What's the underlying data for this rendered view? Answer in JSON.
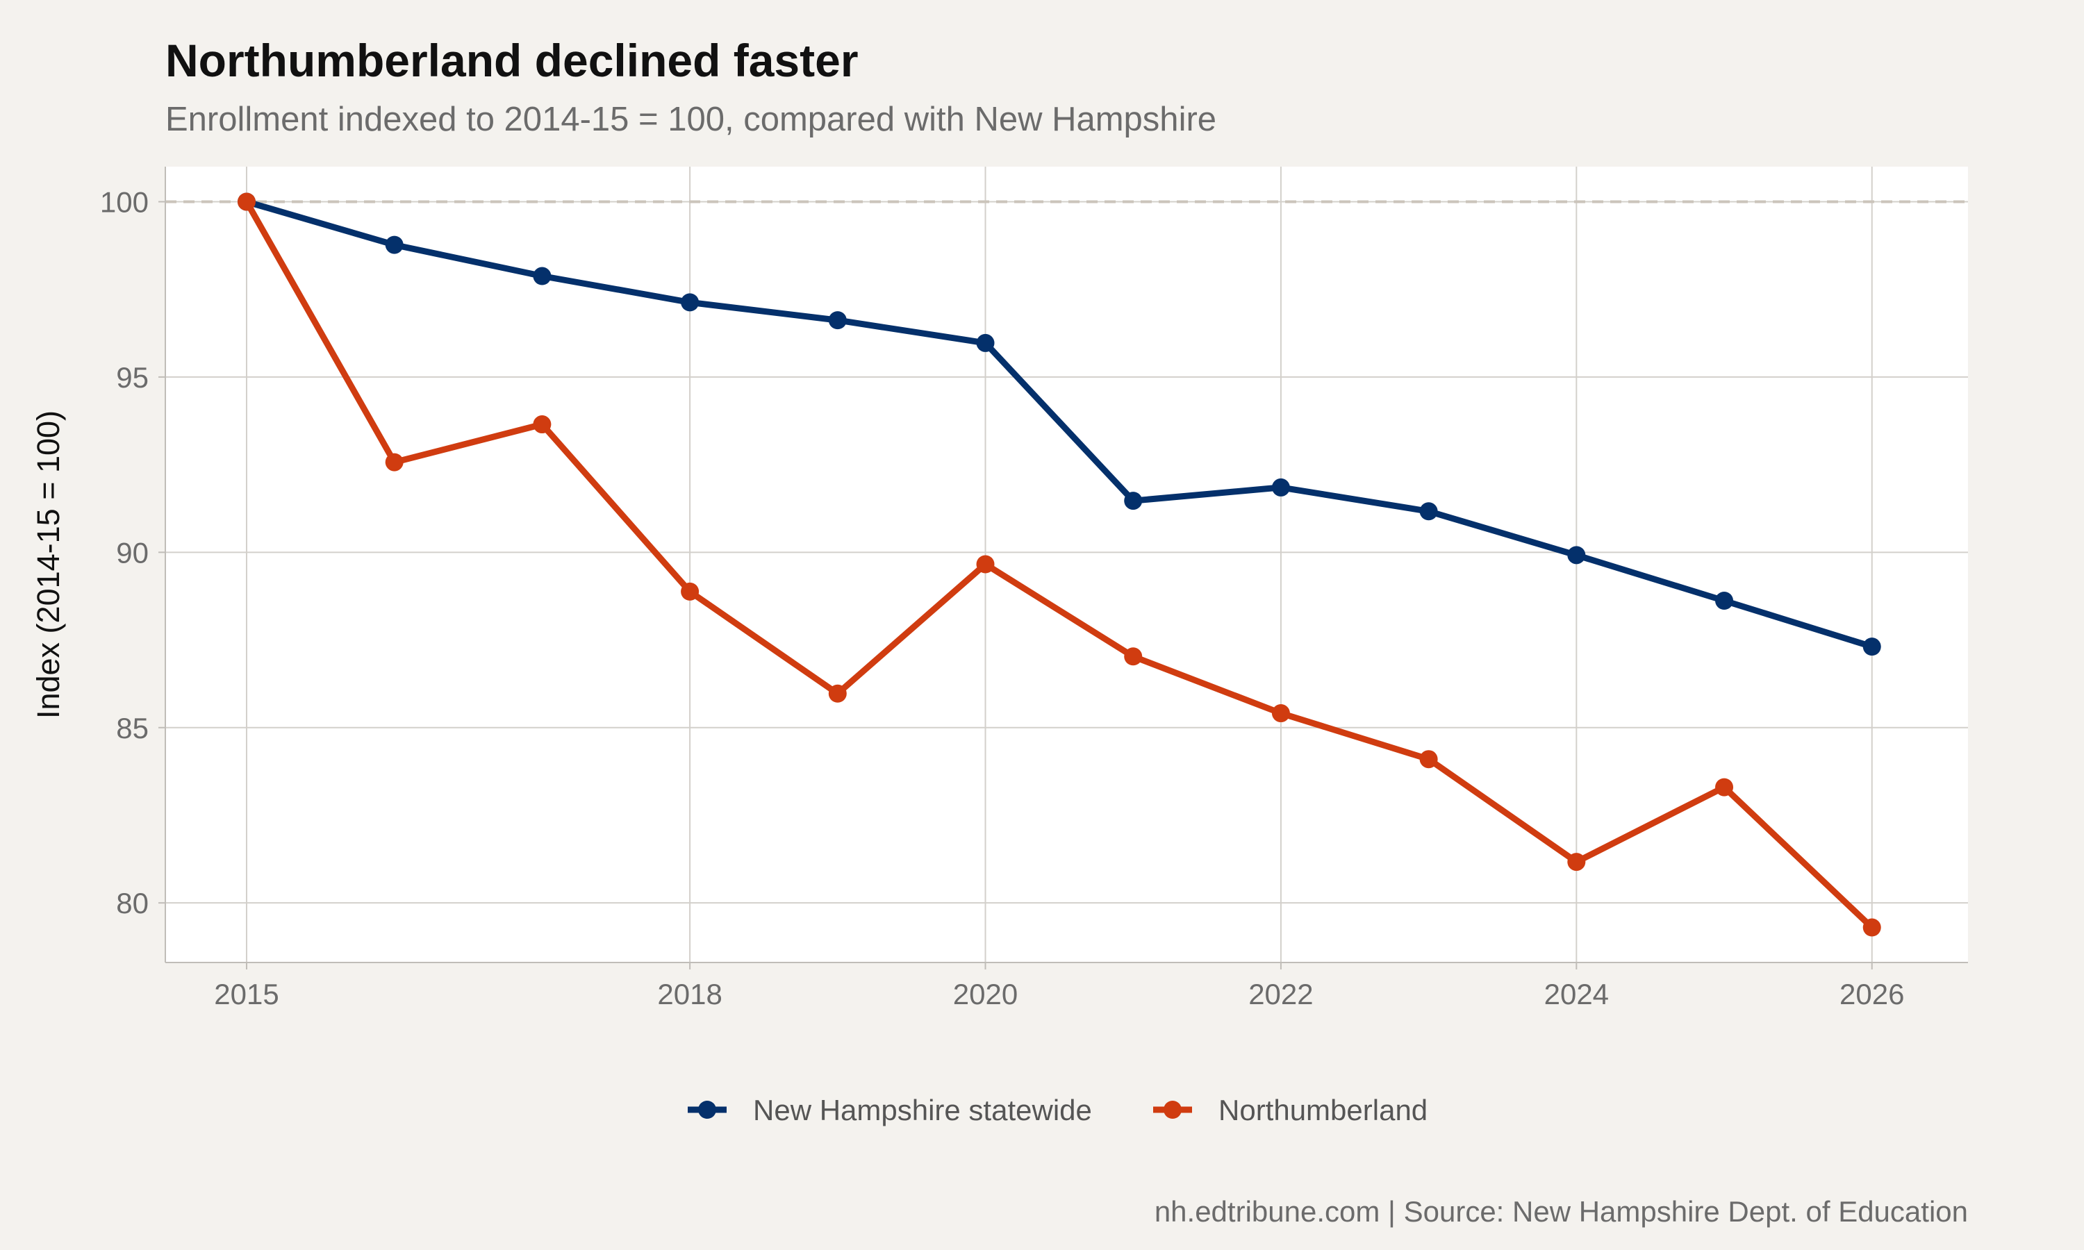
{
  "chart_data": {
    "type": "line",
    "title": "Northumberland declined faster",
    "subtitle": "Enrollment indexed to 2014-15 = 100, compared with New Hampshire",
    "xlabel": "",
    "ylabel": "Index (2014-15 = 100)",
    "caption": "nh.edtribune.com | Source: New Hampshire Dept. of Education",
    "x": [
      2015,
      2016,
      2017,
      2018,
      2019,
      2020,
      2021,
      2022,
      2023,
      2024,
      2025,
      2026
    ],
    "x_ticks": [
      "2015",
      "2018",
      "2020",
      "2022",
      "2024",
      "2026"
    ],
    "y_ticks": [
      "80",
      "85",
      "90",
      "95",
      "100"
    ],
    "xlim": [
      2014.45,
      2026.65
    ],
    "ylim": [
      78.3,
      101.0
    ],
    "reference_line": 100,
    "grid": true,
    "legend_position": "bottom",
    "series": [
      {
        "name": "New Hampshire statewide",
        "color": "#04306b",
        "values": [
          100.0,
          98.77,
          97.88,
          97.13,
          96.62,
          95.97,
          91.47,
          91.85,
          91.17,
          89.92,
          88.62,
          87.31
        ]
      },
      {
        "name": "Northumberland",
        "color": "#d03c10",
        "values": [
          100.0,
          92.57,
          93.65,
          88.88,
          85.97,
          89.66,
          87.03,
          85.41,
          84.1,
          81.17,
          83.3,
          79.3
        ]
      }
    ]
  }
}
